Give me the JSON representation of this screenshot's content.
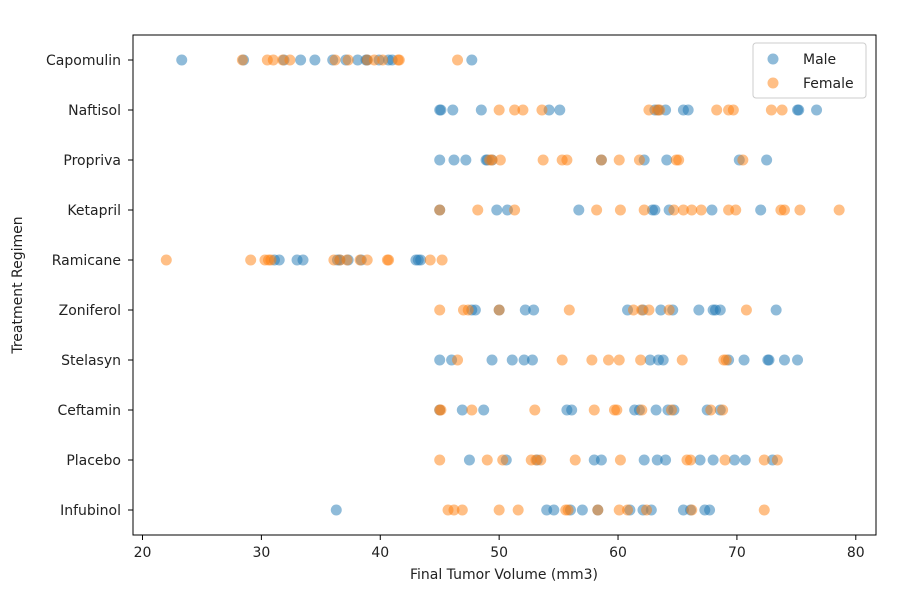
{
  "chart_data": {
    "type": "scatter",
    "title": "",
    "xlabel": "Final Tumor Volume (mm3)",
    "ylabel": "Treatment Regimen",
    "xlim": [
      19.2,
      81.7
    ],
    "x_ticks": [
      20,
      30,
      40,
      50,
      60,
      70,
      80
    ],
    "categories": [
      "Capomulin",
      "Naftisol",
      "Propriva",
      "Ketapril",
      "Ramicane",
      "Zoniferol",
      "Stelasyn",
      "Ceftamin",
      "Placebo",
      "Infubinol"
    ],
    "grid": false,
    "legend_position": "top-right",
    "series": [
      {
        "name": "Male",
        "color": "#1f77b4",
        "opacity": 0.5,
        "points": {
          "Capomulin": [
            23.3,
            28.5,
            31.9,
            33.3,
            34.5,
            36.0,
            37.1,
            38.1,
            38.8,
            38.9,
            39.9,
            40.7,
            41.0,
            47.7
          ],
          "Naftisol": [
            45.0,
            45.1,
            46.1,
            48.5,
            54.2,
            55.1,
            63.1,
            63.4,
            64.0,
            65.5,
            65.9,
            75.1,
            75.2,
            76.7
          ],
          "Propriva": [
            45.0,
            46.2,
            47.2,
            48.9,
            49.0,
            49.4,
            58.6,
            62.2,
            64.1,
            70.2,
            72.5
          ],
          "Ketapril": [
            45.0,
            49.8,
            50.7,
            56.7,
            62.9,
            63.1,
            64.3,
            67.9,
            72.0
          ],
          "Ramicane": [
            31.1,
            31.5,
            33.0,
            33.5,
            36.4,
            36.6,
            37.3,
            38.4,
            43.0,
            43.2,
            43.4
          ],
          "Zoniferol": [
            47.7,
            48.0,
            50.0,
            52.2,
            52.9,
            60.8,
            62.1,
            63.6,
            64.6,
            66.8,
            68.0,
            68.2,
            68.6,
            73.3
          ],
          "Stelasyn": [
            45.0,
            46.0,
            49.4,
            51.1,
            52.1,
            52.8,
            62.7,
            63.4,
            63.8,
            69.3,
            70.6,
            72.6,
            72.7,
            74.0,
            75.1
          ],
          "Ceftamin": [
            45.0,
            46.9,
            48.7,
            55.7,
            56.1,
            61.4,
            61.8,
            63.2,
            64.2,
            64.7,
            67.5,
            68.6
          ],
          "Placebo": [
            47.5,
            50.6,
            53.2,
            58.0,
            58.6,
            62.2,
            63.3,
            64.0,
            66.9,
            68.0,
            69.8,
            70.7,
            73.0
          ],
          "Infubinol": [
            36.3,
            54.0,
            54.6,
            56.0,
            57.0,
            58.3,
            61.0,
            62.1,
            62.8,
            65.5,
            66.1,
            67.3,
            67.7
          ]
        }
      },
      {
        "name": "Female",
        "color": "#ff7f0e",
        "opacity": 0.5,
        "points": {
          "Capomulin": [
            28.4,
            30.5,
            31.0,
            31.8,
            32.4,
            36.2,
            37.3,
            38.9,
            39.5,
            40.2,
            41.5,
            41.6,
            46.5
          ],
          "Naftisol": [
            50.0,
            51.3,
            52.0,
            53.6,
            62.6,
            63.3,
            63.5,
            68.3,
            69.3,
            69.7,
            72.9,
            73.8
          ],
          "Propriva": [
            49.2,
            49.4,
            50.1,
            53.7,
            55.3,
            55.7,
            58.6,
            60.1,
            61.8,
            64.9,
            65.1,
            70.5
          ],
          "Ketapril": [
            45.0,
            48.2,
            51.3,
            58.2,
            60.2,
            62.2,
            64.7,
            65.5,
            66.2,
            67.0,
            69.3,
            69.9,
            73.7,
            74.0,
            75.3,
            78.6
          ],
          "Ramicane": [
            22.0,
            29.1,
            30.3,
            30.6,
            30.8,
            36.1,
            36.6,
            37.2,
            38.3,
            38.9,
            40.6,
            40.7,
            44.2,
            45.2
          ],
          "Zoniferol": [
            45.0,
            47.0,
            47.4,
            50.0,
            55.9,
            61.3,
            62.0,
            62.6,
            64.3,
            70.8
          ],
          "Stelasyn": [
            46.5,
            55.3,
            57.8,
            59.2,
            60.1,
            61.9,
            65.4,
            68.9,
            69.1
          ],
          "Ceftamin": [
            45.0,
            45.1,
            47.7,
            53.0,
            58.0,
            59.7,
            59.9,
            62.0,
            64.5,
            67.8,
            68.8
          ],
          "Placebo": [
            45.0,
            49.0,
            50.3,
            52.7,
            53.1,
            53.5,
            56.4,
            60.2,
            65.8,
            66.1,
            69.0,
            72.3,
            73.4
          ],
          "Infubinol": [
            45.7,
            46.2,
            46.9,
            50.0,
            51.6,
            55.6,
            55.8,
            58.3,
            60.1,
            60.8,
            62.4,
            66.2,
            72.3
          ]
        }
      }
    ]
  }
}
